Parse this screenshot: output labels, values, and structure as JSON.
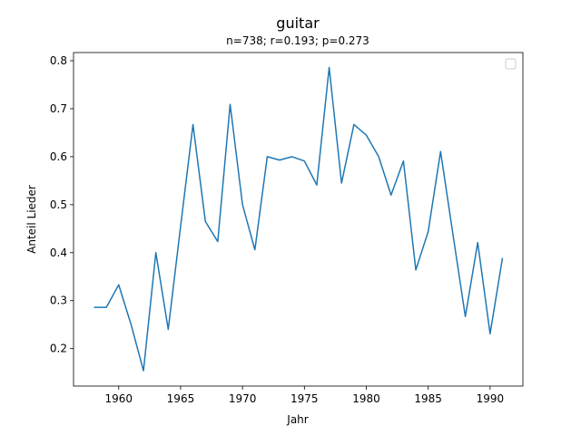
{
  "chart_data": {
    "type": "line",
    "title": "guitar",
    "subtitle": "n=738; r=0.193; p=0.273",
    "xlabel": "Jahr",
    "ylabel": "Anteil Lieder",
    "xlim": [
      1956.35,
      1992.65
    ],
    "ylim": [
      0.122,
      0.817
    ],
    "xticks": [
      1960,
      1965,
      1970,
      1975,
      1980,
      1985,
      1990
    ],
    "yticks": [
      0.2,
      0.3,
      0.4,
      0.5,
      0.6,
      0.7,
      0.8
    ],
    "grid": false,
    "legend": "top-right",
    "line_color": "#1f77b4",
    "x": [
      1958,
      1959,
      1960,
      1961,
      1962,
      1963,
      1964,
      1965,
      1966,
      1967,
      1968,
      1969,
      1970,
      1971,
      1972,
      1973,
      1974,
      1975,
      1976,
      1977,
      1978,
      1979,
      1980,
      1981,
      1982,
      1983,
      1984,
      1985,
      1986,
      1987,
      1988,
      1989,
      1990,
      1991
    ],
    "y": [
      0.286,
      0.286,
      0.333,
      0.25,
      0.154,
      0.4,
      0.24,
      0.455,
      0.667,
      0.465,
      0.423,
      0.709,
      0.5,
      0.406,
      0.6,
      0.593,
      0.6,
      0.591,
      0.541,
      0.786,
      0.545,
      0.667,
      0.645,
      0.6,
      0.52,
      0.591,
      0.364,
      0.444,
      0.611,
      0.438,
      0.267,
      0.421,
      0.231,
      0.389
    ]
  }
}
